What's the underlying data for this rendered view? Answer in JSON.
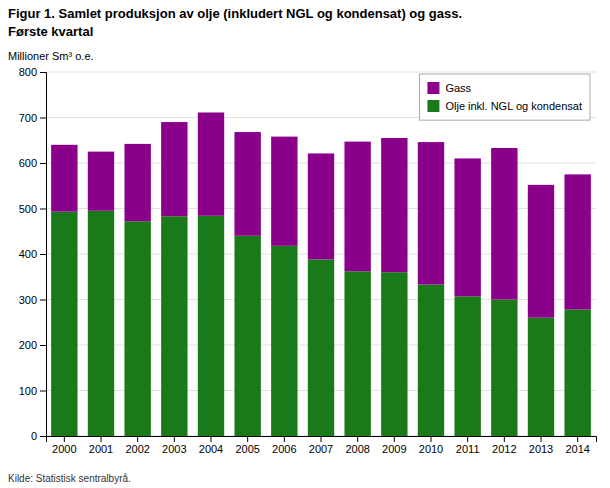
{
  "chart_data": {
    "type": "bar",
    "stacked": true,
    "title": "Figur 1. Samlet produksjon av olje (inkludert NGL og kondensat) og gass.",
    "subtitle": "Første kvartal",
    "y_label": "Millioner Sm³ o.e.",
    "annotations": [
      "Kilde: Statistisk sentralbyrå."
    ],
    "categories": [
      "2000",
      "2001",
      "2002",
      "2003",
      "2004",
      "2005",
      "2006",
      "2007",
      "2008",
      "2009",
      "2010",
      "2011",
      "2012",
      "2013",
      "2014"
    ],
    "series": [
      {
        "name": "Olje inkl. NGL og kondensat",
        "color": "#1a7a1a",
        "values": [
          493,
          495,
          472,
          483,
          484,
          440,
          418,
          388,
          362,
          360,
          333,
          307,
          300,
          260,
          278
        ]
      },
      {
        "name": "Gass",
        "color": "#8B008B",
        "values": [
          147,
          130,
          170,
          207,
          227,
          228,
          240,
          233,
          285,
          295,
          313,
          303,
          333,
          292,
          297
        ]
      }
    ],
    "ylim": [
      0,
      800
    ],
    "yticks": [
      0,
      100,
      200,
      300,
      400,
      500,
      600,
      700,
      800
    ],
    "grid": true,
    "legend": "upper right"
  }
}
